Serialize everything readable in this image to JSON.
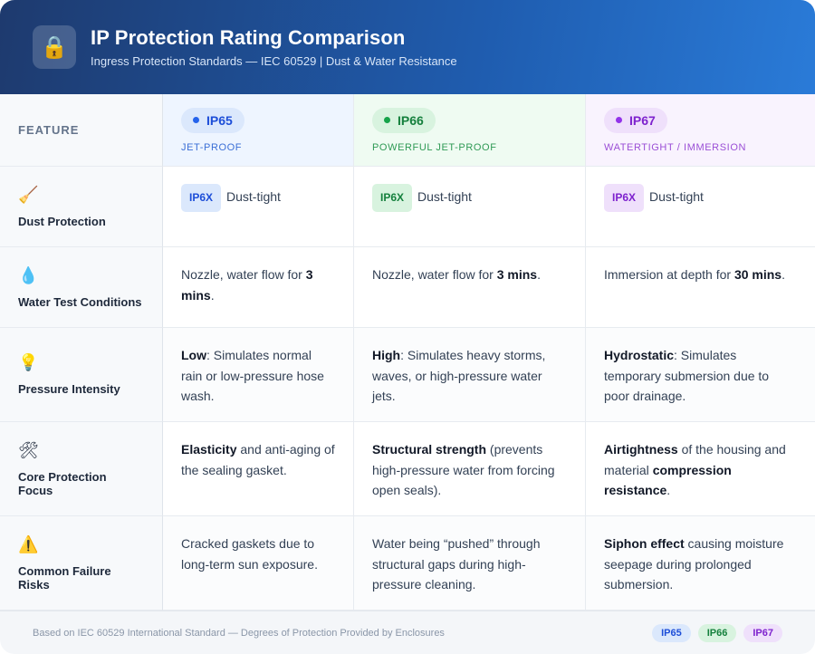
{
  "header": {
    "icon": "lock-icon",
    "title": "IP Protection Rating Comparison",
    "subtitle": "Ingress Protection Standards — IEC 60529 | Dust & Water Resistance"
  },
  "table": {
    "feature_header": "FEATURE",
    "columns": [
      {
        "name": "IP65",
        "subtitle": "JET-PROOF",
        "color": "#2563eb"
      },
      {
        "name": "IP66",
        "subtitle": "POWERFUL JET-PROOF",
        "color": "#16a34a"
      },
      {
        "name": "IP67",
        "subtitle": "WATERTIGHT / IMMERSION",
        "color": "#9333ea"
      }
    ],
    "rows": [
      {
        "icon": "broom-icon",
        "label": "Dust Protection",
        "cells": [
          {
            "tag": "IP6X",
            "text": "Dust-tight"
          },
          {
            "tag": "IP6X",
            "text": "Dust-tight"
          },
          {
            "tag": "IP6X",
            "text": "Dust-tight"
          }
        ]
      },
      {
        "icon": "droplet-icon",
        "label": "Water Test Conditions",
        "cells": [
          {
            "pre": "Nozzle, water flow for ",
            "bold": "3 mins",
            "post": "."
          },
          {
            "pre": "Nozzle, water flow for ",
            "bold": "3 mins",
            "post": "."
          },
          {
            "pre": "Immersion at depth for ",
            "bold": "30 mins",
            "post": "."
          }
        ]
      },
      {
        "icon": "lightbulb-icon",
        "label": "Pressure Intensity",
        "cells": [
          {
            "pre": "",
            "bold": "Low",
            "post": ": Simulates normal rain or low-pressure hose wash."
          },
          {
            "pre": "",
            "bold": "High",
            "post": ": Simulates heavy storms, waves, or high-pressure water jets."
          },
          {
            "pre": "",
            "bold": "Hydrostatic",
            "post": ": Simulates temporary submersion due to poor drainage."
          }
        ]
      },
      {
        "icon": "tools-icon",
        "label": "Core Protection Focus",
        "cells": [
          {
            "pre": "",
            "bold": "Elasticity",
            "post": " and anti-aging of the sealing gasket."
          },
          {
            "pre": "",
            "bold": "Structural strength",
            "post": " (prevents high-pressure water from forcing open seals)."
          },
          {
            "pre": "",
            "bold": "Airtightness",
            "post": " of the housing and material ",
            "bold2": "compression resistance",
            "post2": "."
          }
        ]
      },
      {
        "icon": "warning-icon",
        "label": "Common Failure Risks",
        "cells": [
          {
            "pre": "Cracked gaskets due to long-term sun exposure.",
            "bold": "",
            "post": ""
          },
          {
            "pre": "Water being “pushed” through structural gaps during high-pressure cleaning.",
            "bold": "",
            "post": ""
          },
          {
            "pre": "",
            "bold": "Siphon effect",
            "post": " causing moisture seepage during prolonged submersion."
          }
        ]
      }
    ]
  },
  "footer": {
    "text": "Based on IEC 60529 International Standard — Degrees of Protection Provided by Enclosures",
    "badges": [
      "IP65",
      "IP66",
      "IP67"
    ]
  }
}
